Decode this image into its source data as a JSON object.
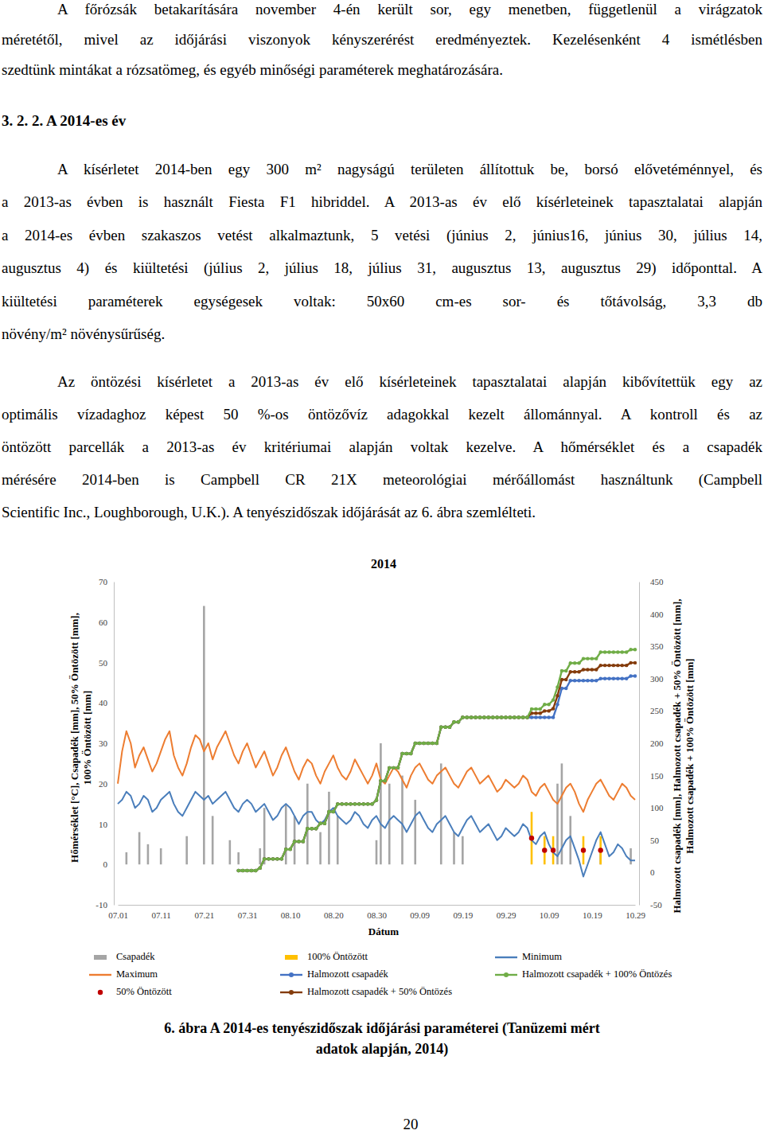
{
  "paragraph_1": [
    "A főrózsák betakarítására november 4-én került sor, egy menetben, függetlenül a virágzatok",
    "méretétől, mivel az időjárási viszonyok kényszerérést eredményeztek. Kezelésenként 4 ismétlésben",
    "szedtünk mintákat a rózsatömeg, és egyéb minőségi paraméterek meghatározására."
  ],
  "heading": "3. 2. 2. A 2014-es év",
  "paragraph_2": [
    "A kísérletet 2014-ben egy 300 m² nagyságú területen állítottuk be, borsó elővetéménnyel, és",
    "a 2013-as évben is használt Fiesta F1 hibriddel. A 2013-as év elő kísérleteinek tapasztalatai alapján",
    "a 2014-es évben szakaszos vetést alkalmaztunk, 5 vetési (június 2, június16, június 30, július 14,",
    "augusztus 4) és kiültetési (július 2, július 18, július 31, augusztus 13, augusztus 29) időponttal. A",
    "kiültetési paraméterek egységesek voltak: 50x60 cm-es sor- és tőtávolság, 3,3 db",
    "növény/m² növénysűrűség."
  ],
  "paragraph_3": [
    "Az öntözési kísérletet a 2013-as év elő kísérleteinek tapasztalatai alapján kibővítettük egy az",
    "optimális vízadaghoz képest 50 %-os öntözővíz adagokkal kezelt állománnyal. A kontroll és az",
    "öntözött parcellák a 2013-as év kritériumai alapján voltak kezelve. A hőmérséklet és a csapadék",
    "mérésére 2014-ben is Campbell CR 21X meteorológiai mérőállomást használtunk (Campbell",
    "Scientific Inc., Loughborough, U.K.). A tenyészidőszak időjárását az 6. ábra szemlélteti."
  ],
  "chart_data": {
    "type": "line",
    "title": "2014",
    "x_label": "Dátum",
    "y_label": [
      "Hőmérséklet [°C], Csapadék [mm], 50% Öntözött [mm],",
      "100% Öntözött [mm]"
    ],
    "y2_label": [
      "Halmozott csapadék [mm], Halmozott csapadék + 50% Öntözött [mm],",
      "Halmozott csapadék + 100% Öntözött [mm]"
    ],
    "categories": [
      "07.01",
      null,
      null,
      null,
      null,
      null,
      null,
      null,
      null,
      null,
      "07.11",
      null,
      null,
      null,
      null,
      null,
      null,
      null,
      null,
      null,
      "07.21",
      null,
      null,
      null,
      null,
      null,
      null,
      null,
      null,
      null,
      "07.31",
      null,
      null,
      null,
      null,
      null,
      null,
      null,
      null,
      null,
      "08.10",
      null,
      null,
      null,
      null,
      null,
      null,
      null,
      null,
      null,
      "08.20",
      null,
      null,
      null,
      null,
      null,
      null,
      null,
      null,
      null,
      "08.30",
      null,
      null,
      null,
      null,
      null,
      null,
      null,
      null,
      null,
      "09.09",
      null,
      null,
      null,
      null,
      null,
      null,
      null,
      null,
      null,
      "09.19",
      null,
      null,
      null,
      null,
      null,
      null,
      null,
      null,
      null,
      "09.29",
      null,
      null,
      null,
      null,
      null,
      null,
      null,
      null,
      null,
      "10.09",
      null,
      null,
      null,
      null,
      null,
      null,
      null,
      null,
      null,
      "10.19",
      null,
      null,
      null,
      null,
      null,
      null,
      null,
      null,
      null,
      "10.29"
    ],
    "ylim": [
      -10,
      70
    ],
    "yticks": [
      -10,
      0,
      10,
      20,
      30,
      40,
      50,
      60,
      70
    ],
    "y2lim": [
      -50,
      450
    ],
    "y2ticks": [
      -50,
      0,
      50,
      100,
      150,
      200,
      250,
      300,
      350,
      400,
      450
    ],
    "grid": false,
    "legend": "bottom",
    "series": [
      {
        "name": "Csapadék",
        "type": "bar",
        "color": "#a5a5a5",
        "values": [
          0,
          0,
          3,
          0,
          0,
          8,
          0,
          5,
          0,
          0,
          4,
          0,
          0,
          0,
          0,
          0,
          7,
          0,
          0,
          0,
          64,
          0,
          12,
          0,
          0,
          0,
          6,
          0,
          3,
          0,
          0,
          0,
          0,
          4,
          14,
          0,
          0,
          0,
          0,
          15,
          0,
          12,
          0,
          0,
          20,
          0,
          0,
          8,
          0,
          18,
          0,
          12,
          0,
          0,
          0,
          0,
          0,
          0,
          0,
          0,
          6,
          30,
          0,
          20,
          0,
          0,
          22,
          0,
          0,
          16,
          0,
          0,
          0,
          0,
          0,
          25,
          0,
          0,
          8,
          0,
          7,
          0,
          0,
          0,
          0,
          0,
          0,
          0,
          0,
          0,
          0,
          0,
          0,
          0,
          0,
          0,
          0,
          0,
          0,
          0,
          0,
          0,
          20,
          25,
          0,
          12,
          0,
          0,
          0,
          0,
          0,
          0,
          3,
          0,
          0,
          0,
          0,
          0,
          0,
          4,
          0
        ]
      },
      {
        "name": "Maximum",
        "type": "line",
        "color": "#ed7d31",
        "values": [
          20,
          28,
          33,
          30,
          24,
          27,
          29,
          26,
          23,
          25,
          28,
          31,
          33,
          27,
          24,
          22,
          25,
          29,
          32,
          31,
          28,
          30,
          26,
          29,
          31,
          33,
          30,
          27,
          25,
          28,
          30,
          27,
          24,
          26,
          28,
          25,
          22,
          24,
          27,
          29,
          26,
          23,
          21,
          24,
          26,
          25,
          22,
          20,
          23,
          25,
          27,
          24,
          22,
          21,
          23,
          26,
          24,
          22,
          20,
          22,
          25,
          21,
          20,
          22,
          24,
          23,
          21,
          19,
          22,
          24,
          25,
          23,
          21,
          20,
          22,
          23,
          24,
          22,
          20,
          19,
          21,
          23,
          24,
          22,
          20,
          21,
          22,
          20,
          18,
          19,
          21,
          20,
          19,
          20,
          22,
          21,
          18,
          17,
          19,
          20,
          18,
          16,
          15,
          17,
          19,
          20,
          18,
          15,
          13,
          16,
          18,
          20,
          21,
          19,
          17,
          16,
          18,
          20,
          19,
          17,
          16
        ]
      },
      {
        "name": "50% Öntözött",
        "type": "scatter",
        "marker": "circle",
        "color": "#c00000",
        "values": [
          null,
          null,
          null,
          null,
          null,
          null,
          null,
          null,
          null,
          null,
          null,
          null,
          null,
          null,
          null,
          null,
          null,
          null,
          null,
          null,
          null,
          null,
          null,
          null,
          null,
          null,
          null,
          null,
          null,
          null,
          null,
          null,
          null,
          null,
          null,
          null,
          null,
          null,
          null,
          null,
          null,
          null,
          null,
          null,
          null,
          null,
          null,
          null,
          null,
          null,
          null,
          null,
          null,
          null,
          null,
          null,
          null,
          null,
          null,
          null,
          null,
          null,
          null,
          null,
          null,
          null,
          null,
          null,
          null,
          null,
          null,
          null,
          null,
          null,
          null,
          null,
          null,
          null,
          null,
          null,
          null,
          null,
          null,
          null,
          null,
          null,
          null,
          null,
          null,
          null,
          null,
          null,
          null,
          null,
          null,
          null,
          6.5,
          null,
          null,
          3.5,
          null,
          3.5,
          null,
          null,
          null,
          null,
          null,
          null,
          3.5,
          null,
          null,
          null,
          3.5,
          null,
          null,
          null,
          null,
          null,
          null,
          null,
          null
        ]
      },
      {
        "name": "100% Öntözött",
        "type": "bar",
        "color": "#ffc000",
        "values": [
          null,
          null,
          null,
          null,
          null,
          null,
          null,
          null,
          null,
          null,
          null,
          null,
          null,
          null,
          null,
          null,
          null,
          null,
          null,
          null,
          null,
          null,
          null,
          null,
          null,
          null,
          null,
          null,
          null,
          null,
          null,
          null,
          null,
          null,
          null,
          null,
          null,
          null,
          null,
          null,
          null,
          null,
          null,
          null,
          null,
          null,
          null,
          null,
          null,
          null,
          null,
          null,
          null,
          null,
          null,
          null,
          null,
          null,
          null,
          null,
          null,
          null,
          null,
          null,
          null,
          null,
          null,
          null,
          null,
          null,
          null,
          null,
          null,
          null,
          null,
          null,
          null,
          null,
          null,
          null,
          null,
          null,
          null,
          null,
          null,
          null,
          null,
          null,
          null,
          null,
          null,
          null,
          null,
          null,
          null,
          null,
          13,
          null,
          null,
          7,
          null,
          7,
          null,
          null,
          null,
          null,
          null,
          null,
          7,
          null,
          null,
          null,
          7,
          null,
          null,
          null,
          null,
          null,
          null,
          null,
          null
        ]
      },
      {
        "name": "Halmozott csapadék",
        "type": "line",
        "marker": "circle",
        "axis": "y2",
        "color": "#4472c4",
        "values": [
          null,
          null,
          null,
          null,
          null,
          null,
          null,
          null,
          null,
          null,
          null,
          null,
          null,
          null,
          null,
          null,
          null,
          null,
          null,
          null,
          null,
          null,
          null,
          null,
          null,
          null,
          null,
          null,
          3,
          3,
          3,
          3,
          3,
          7,
          21,
          21,
          21,
          21,
          21,
          36,
          36,
          48,
          48,
          48,
          68,
          68,
          68,
          76,
          76,
          94,
          94,
          106,
          106,
          106,
          106,
          106,
          106,
          106,
          106,
          106,
          112,
          142,
          142,
          162,
          162,
          162,
          184,
          184,
          184,
          200,
          200,
          200,
          200,
          200,
          200,
          225,
          225,
          225,
          233,
          233,
          240,
          240,
          240,
          240,
          240,
          240,
          240,
          240,
          240,
          240,
          240,
          240,
          240,
          240,
          240,
          240,
          240,
          240,
          240,
          240,
          240,
          240,
          260,
          285,
          285,
          297,
          297,
          297,
          297,
          297,
          297,
          297,
          300,
          300,
          300,
          300,
          300,
          300,
          300,
          304,
          304
        ]
      },
      {
        "name": "Halmozott csapadék + 50% Öntözés",
        "type": "line",
        "marker": "circle",
        "axis": "y2",
        "color": "#843c0c",
        "values": [
          null,
          null,
          null,
          null,
          null,
          null,
          null,
          null,
          null,
          null,
          null,
          null,
          null,
          null,
          null,
          null,
          null,
          null,
          null,
          null,
          null,
          null,
          null,
          null,
          null,
          null,
          null,
          null,
          3,
          3,
          3,
          3,
          3,
          7,
          21,
          21,
          21,
          21,
          21,
          36,
          36,
          48,
          48,
          48,
          68,
          68,
          68,
          76,
          76,
          94,
          94,
          106,
          106,
          106,
          106,
          106,
          106,
          106,
          106,
          106,
          112,
          142,
          142,
          162,
          162,
          162,
          184,
          184,
          184,
          200,
          200,
          200,
          200,
          200,
          200,
          225,
          225,
          225,
          233,
          233,
          240,
          240,
          240,
          240,
          240,
          240,
          240,
          240,
          240,
          240,
          240,
          240,
          240,
          240,
          240,
          240,
          246.5,
          246.5,
          246.5,
          250,
          250,
          253.5,
          273.5,
          298.5,
          298.5,
          310.5,
          310.5,
          310.5,
          314,
          314,
          314,
          314,
          320.5,
          320.5,
          320.5,
          320.5,
          320.5,
          320.5,
          320.5,
          324.5,
          324.5
        ]
      },
      {
        "name": "Minimum",
        "type": "line",
        "color": "#4a7ebb",
        "values": [
          15,
          16,
          18,
          17,
          14,
          15,
          17,
          16,
          13,
          14,
          16,
          17,
          18,
          15,
          13,
          12,
          14,
          16,
          18,
          17,
          16,
          17,
          15,
          16,
          17,
          18,
          16,
          14,
          13,
          15,
          16,
          15,
          13,
          14,
          15,
          13,
          11,
          12,
          14,
          15,
          14,
          12,
          10,
          12,
          13,
          13,
          11,
          10,
          11,
          13,
          14,
          12,
          11,
          10,
          11,
          13,
          12,
          10,
          9,
          11,
          12,
          10,
          9,
          11,
          12,
          11,
          10,
          8,
          10,
          12,
          13,
          11,
          9,
          8,
          10,
          11,
          12,
          10,
          8,
          7,
          9,
          11,
          12,
          10,
          8,
          9,
          10,
          8,
          6,
          7,
          9,
          8,
          7,
          8,
          10,
          9,
          6,
          5,
          7,
          8,
          5,
          3,
          2,
          4,
          6,
          7,
          4,
          1,
          -3,
          0,
          3,
          6,
          8,
          5,
          2,
          3,
          5,
          4,
          2,
          1,
          1
        ]
      },
      {
        "name": "Halmozott csapadék + 100% Öntözés",
        "type": "line",
        "marker": "circle",
        "axis": "y2",
        "color": "#70ad47",
        "values": [
          null,
          null,
          null,
          null,
          null,
          null,
          null,
          null,
          null,
          null,
          null,
          null,
          null,
          null,
          null,
          null,
          null,
          null,
          null,
          null,
          null,
          null,
          null,
          null,
          null,
          null,
          null,
          null,
          3,
          3,
          3,
          3,
          3,
          7,
          21,
          21,
          21,
          21,
          21,
          36,
          36,
          48,
          48,
          48,
          68,
          68,
          68,
          76,
          76,
          94,
          94,
          106,
          106,
          106,
          106,
          106,
          106,
          106,
          106,
          106,
          112,
          142,
          142,
          162,
          162,
          162,
          184,
          184,
          184,
          200,
          200,
          200,
          200,
          200,
          200,
          225,
          225,
          225,
          233,
          233,
          240,
          240,
          240,
          240,
          240,
          240,
          240,
          240,
          240,
          240,
          240,
          240,
          240,
          240,
          240,
          240,
          253,
          253,
          253,
          260,
          260,
          267,
          287,
          312,
          312,
          324,
          324,
          324,
          331,
          331,
          331,
          331,
          341,
          341,
          341,
          341,
          341,
          341,
          341,
          345,
          345
        ]
      }
    ]
  },
  "caption": [
    "6. ábra A 2014-es tenyészidőszak időjárási paraméterei (Tanüzemi mért",
    "adatok alapján, 2014)"
  ],
  "page_number": "20"
}
